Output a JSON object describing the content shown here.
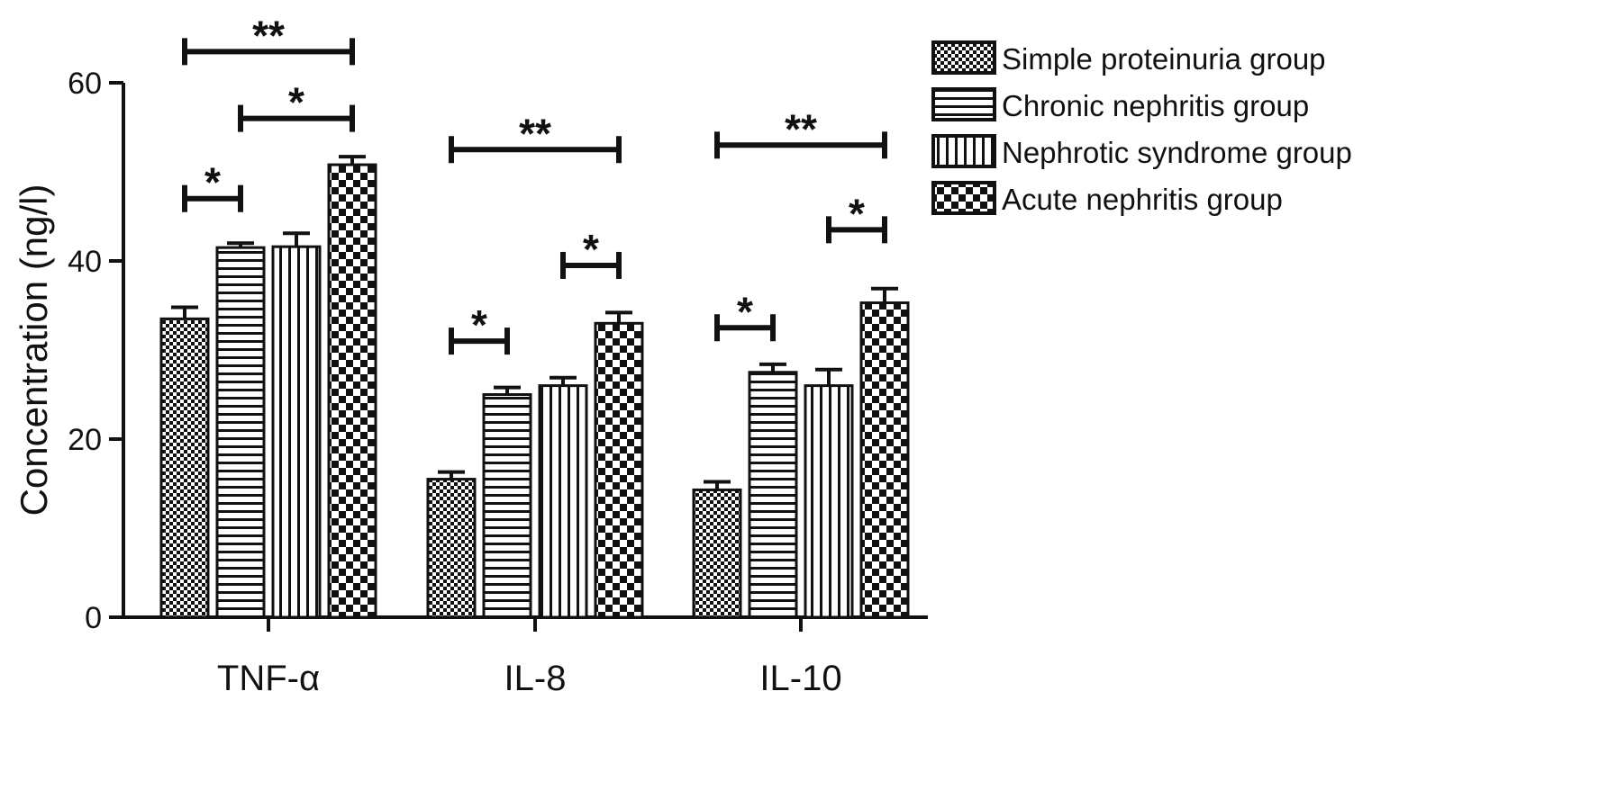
{
  "chart_data": {
    "type": "bar",
    "title": "",
    "xlabel": "",
    "ylabel": "Concentration (ng/l)",
    "ylim": [
      0,
      60
    ],
    "yticks": [
      0,
      20,
      40,
      60
    ],
    "grid": false,
    "legend_position": "top-right",
    "categories": [
      "TNF-α",
      "IL-8",
      "IL-10"
    ],
    "series": [
      {
        "name": "Simple proteinuria group",
        "pattern": "fine-checker",
        "values": [
          33.5,
          15.5,
          14.3
        ],
        "errors": [
          1.3,
          0.8,
          0.9
        ]
      },
      {
        "name": "Chronic nephritis group",
        "pattern": "horizontal-lines",
        "values": [
          41.5,
          25.0,
          27.5
        ],
        "errors": [
          0.5,
          0.8,
          0.9
        ]
      },
      {
        "name": "Nephrotic syndrome group",
        "pattern": "vertical-lines",
        "values": [
          41.6,
          26.0,
          26.0
        ],
        "errors": [
          1.5,
          0.9,
          1.8
        ]
      },
      {
        "name": "Acute nephritis group",
        "pattern": "coarse-checker",
        "values": [
          50.8,
          33.0,
          35.3
        ],
        "errors": [
          0.9,
          1.2,
          1.6
        ]
      }
    ],
    "significance": [
      {
        "category": 0,
        "from": 0,
        "to": 1,
        "y": 47,
        "label": "*"
      },
      {
        "category": 0,
        "from": 1,
        "to": 3,
        "y": 56,
        "label": "*"
      },
      {
        "category": 0,
        "from": 0,
        "to": 3,
        "y": 63.5,
        "label": "**"
      },
      {
        "category": 1,
        "from": 0,
        "to": 1,
        "y": 31,
        "label": "*"
      },
      {
        "category": 1,
        "from": 2,
        "to": 3,
        "y": 39.5,
        "label": "*"
      },
      {
        "category": 1,
        "from": 0,
        "to": 3,
        "y": 52.5,
        "label": "**"
      },
      {
        "category": 2,
        "from": 0,
        "to": 1,
        "y": 32.5,
        "label": "*"
      },
      {
        "category": 2,
        "from": 2,
        "to": 3,
        "y": 43.5,
        "label": "*"
      },
      {
        "category": 2,
        "from": 0,
        "to": 3,
        "y": 53,
        "label": "**"
      }
    ],
    "colors": {
      "ink": "#111111",
      "background": "#ffffff"
    }
  }
}
